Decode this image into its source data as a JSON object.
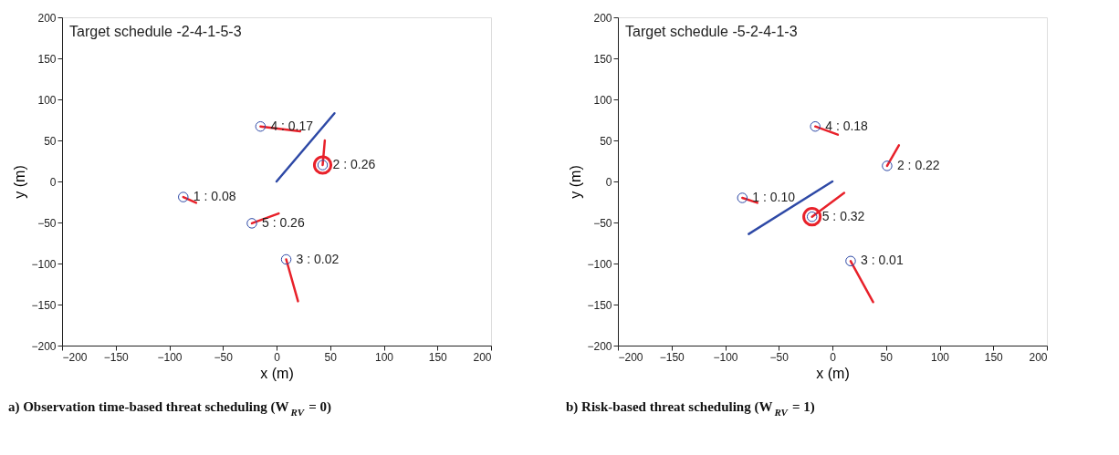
{
  "chart_data": [
    {
      "type": "scatter",
      "title": "Target schedule -2-4-1-5-3",
      "xlabel": "x (m)",
      "ylabel": "y (m)",
      "xlim": [
        -200,
        200
      ],
      "ylim": [
        -200,
        200
      ],
      "xticks": [
        -200,
        -150,
        -100,
        -50,
        0,
        50,
        100,
        150,
        200
      ],
      "yticks": [
        -200,
        -150,
        -100,
        -50,
        0,
        50,
        100,
        150,
        200
      ],
      "grid": false,
      "line_style": "solid",
      "series": [
        {
          "type": "line",
          "color": "#2e49a6",
          "x": [
            0,
            54
          ],
          "values": [
            0,
            83
          ]
        },
        {
          "type": "line",
          "color": "#e8212a",
          "x": [
            -87,
            -75
          ],
          "values": [
            -19,
            -26
          ]
        },
        {
          "type": "line",
          "color": "#e8212a",
          "x": [
            -15,
            22
          ],
          "values": [
            67,
            61
          ]
        },
        {
          "type": "line",
          "color": "#e8212a",
          "x": [
            43,
            45
          ],
          "values": [
            20,
            50
          ]
        },
        {
          "type": "line",
          "color": "#e8212a",
          "x": [
            -23,
            2
          ],
          "values": [
            -51,
            -39
          ]
        },
        {
          "type": "line",
          "color": "#e8212a",
          "x": [
            9,
            20
          ],
          "values": [
            -95,
            -146
          ]
        },
        {
          "marker": "circle",
          "color": "#2e49a6",
          "x": [
            -87,
            -15,
            43,
            -23,
            9
          ],
          "values": [
            -19,
            67,
            20,
            -51,
            -95
          ]
        },
        {
          "type": "scatter",
          "color": "#e8212a",
          "marker": "circle",
          "x": [
            43
          ],
          "values": [
            20
          ]
        }
      ],
      "annotations": [
        {
          "text": "1 : 0.08",
          "x": -87,
          "y": -19
        },
        {
          "text": "4 : 0.17",
          "x": -15,
          "y": 67
        },
        {
          "text": "2 : 0.26",
          "x": 43,
          "y": 20
        },
        {
          "text": "5 : 0.26",
          "x": -23,
          "y": -51
        },
        {
          "text": "3 : 0.02",
          "x": 9,
          "y": -95
        },
        "a) Observation time-based threat scheduling (W$_{RV}$ = 0)"
      ]
    },
    {
      "type": "scatter",
      "title": "Target schedule -5-2-4-1-3",
      "xlabel": "x (m)",
      "ylabel": "y (m)",
      "xlim": [
        -200,
        200
      ],
      "ylim": [
        -200,
        200
      ],
      "xticks": [
        -200,
        -150,
        -100,
        -50,
        0,
        50,
        100,
        150,
        200
      ],
      "yticks": [
        -200,
        -150,
        -100,
        -50,
        0,
        50,
        100,
        150,
        200
      ],
      "grid": false,
      "line_style": "solid",
      "series": [
        {
          "type": "line",
          "color": "#2e49a6",
          "x": [
            0,
            -78
          ],
          "values": [
            0,
            -64
          ]
        },
        {
          "type": "line",
          "color": "#e8212a",
          "x": [
            -84,
            -70
          ],
          "values": [
            -20,
            -26
          ]
        },
        {
          "type": "line",
          "color": "#e8212a",
          "x": [
            -16,
            5
          ],
          "values": [
            67,
            57
          ]
        },
        {
          "type": "line",
          "color": "#e8212a",
          "x": [
            51,
            62
          ],
          "values": [
            19,
            44
          ]
        },
        {
          "type": "line",
          "color": "#e8212a",
          "x": [
            -19,
            11
          ],
          "values": [
            -43,
            -14
          ]
        },
        {
          "type": "line",
          "color": "#e8212a",
          "x": [
            17,
            38
          ],
          "values": [
            -97,
            -147
          ]
        },
        {
          "marker": "circle",
          "color": "#2e49a6",
          "x": [
            -84,
            -16,
            51,
            -19,
            17
          ],
          "values": [
            -20,
            67,
            19,
            -43,
            -97
          ]
        },
        {
          "type": "scatter",
          "color": "#e8212a",
          "marker": "circle",
          "x": [
            -19
          ],
          "values": [
            -43
          ]
        }
      ],
      "annotations": [
        {
          "text": "1 : 0.10",
          "x": -84,
          "y": -20
        },
        {
          "text": "4 : 0.18",
          "x": -16,
          "y": 67
        },
        {
          "text": "2 : 0.22",
          "x": 51,
          "y": 19
        },
        {
          "text": "5 : 0.32",
          "x": -19,
          "y": -43
        },
        {
          "text": "3 : 0.01",
          "x": 17,
          "y": -97
        },
        "b) Risk-based threat scheduling (W$_{RV}$ = 1)"
      ]
    }
  ]
}
